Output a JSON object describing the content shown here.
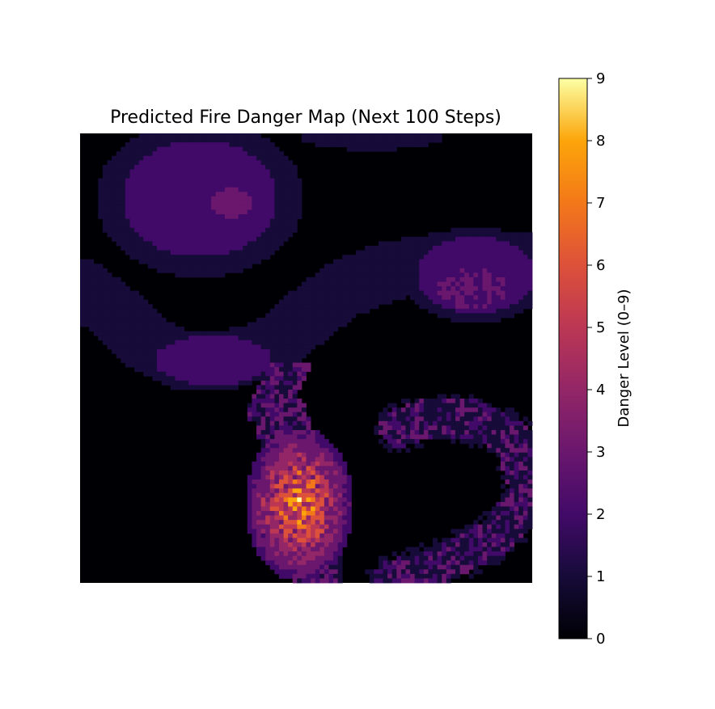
{
  "chart_data": {
    "type": "heatmap",
    "title": "Predicted Fire Danger Map (Next 100 Steps)",
    "xlabel": "",
    "ylabel": "",
    "axes_visible": false,
    "grid": false,
    "colormap": "inferno",
    "value_range": [
      0,
      9
    ],
    "colorbar": {
      "label": "Danger Level (0–9)",
      "ticks": [
        0,
        1,
        2,
        3,
        4,
        5,
        6,
        7,
        8,
        9
      ],
      "placement": "right"
    },
    "grid_size": [
      100,
      100
    ],
    "regions": [
      {
        "kind": "background",
        "level": 0
      },
      {
        "kind": "upper-left blob",
        "outer_level": 1,
        "mid_level": 2,
        "core_level": 3
      },
      {
        "kind": "top-center sliver",
        "level": 1
      },
      {
        "kind": "middle band",
        "level": 1
      },
      {
        "kind": "left-middle patch",
        "level": 2
      },
      {
        "kind": "right blob",
        "mid_level": 2,
        "core_level": 3
      },
      {
        "kind": "lower-center hotspot",
        "peak_level": 9
      },
      {
        "kind": "right hook",
        "level_range": [
          1,
          3
        ]
      }
    ]
  }
}
